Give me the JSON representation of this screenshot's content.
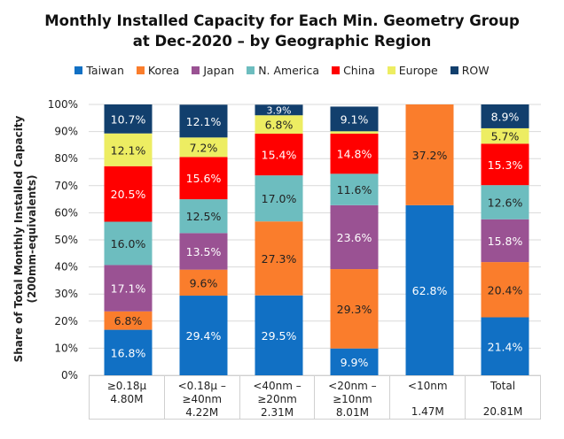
{
  "chart_data": {
    "type": "bar",
    "stacked": true,
    "title": "Monthly Installed Capacity for Each Min. Geometry Group at Dec-2020 – by Geographic Region",
    "title_lines": [
      "Monthly Installed Capacity for Each Min. Geometry Group",
      "at Dec-2020 – by Geographic Region"
    ],
    "xlabel": "",
    "ylabel": "Share of Total Monthly Installed Capacity",
    "ylabel_sub": "(200mm-equivalents)",
    "ylim": [
      0,
      100
    ],
    "yticks": [
      "0%",
      "10%",
      "20%",
      "30%",
      "40%",
      "50%",
      "60%",
      "70%",
      "80%",
      "90%",
      "100%"
    ],
    "grid": true,
    "legend_position": "top",
    "categories": [
      {
        "lines": [
          "≥0.18μ",
          "4.80M",
          ""
        ],
        "name": "≥0.18μ",
        "capacity": "4.80M"
      },
      {
        "lines": [
          "<0.18μ –",
          "≥40nm",
          "4.22M"
        ],
        "name": "<0.18μ – ≥40nm",
        "capacity": "4.22M"
      },
      {
        "lines": [
          "<40nm –",
          "≥20nm",
          "2.31M"
        ],
        "name": "<40nm – ≥20nm",
        "capacity": "2.31M"
      },
      {
        "lines": [
          "<20nm –",
          "≥10nm",
          "8.01M"
        ],
        "name": "<20nm – ≥10nm",
        "capacity": "8.01M"
      },
      {
        "lines": [
          "<10nm",
          "",
          "1.47M"
        ],
        "name": "<10nm",
        "capacity": "1.47M"
      },
      {
        "lines": [
          "Total",
          "",
          "20.81M"
        ],
        "name": "Total",
        "capacity": "20.81M"
      }
    ],
    "series": [
      {
        "name": "Taiwan",
        "color": "#1170C4",
        "label_color": "#ffffff",
        "values": [
          16.8,
          29.4,
          29.5,
          9.9,
          62.8,
          21.4
        ],
        "labels": [
          "16.8%",
          "29.4%",
          "29.5%",
          "9.9%",
          "62.8%",
          "21.4%"
        ]
      },
      {
        "name": "Korea",
        "color": "#FA7D2C",
        "label_color": "#222222",
        "values": [
          6.8,
          9.6,
          27.3,
          29.3,
          37.2,
          20.4
        ],
        "labels": [
          "6.8%",
          "9.6%",
          "27.3%",
          "29.3%",
          "37.2%",
          "20.4%"
        ]
      },
      {
        "name": "Japan",
        "color": "#9A5293",
        "label_color": "#ffffff",
        "values": [
          17.1,
          13.5,
          0,
          23.6,
          0,
          15.8
        ],
        "labels": [
          "17.1%",
          "13.5%",
          "",
          "23.6%",
          "",
          "15.8%"
        ]
      },
      {
        "name": "N. America",
        "color": "#6DBDBF",
        "label_color": "#222222",
        "values": [
          16.0,
          12.5,
          17.0,
          11.6,
          0,
          12.6
        ],
        "labels": [
          "16.0%",
          "12.5%",
          "17.0%",
          "11.6%",
          "",
          "12.6%"
        ]
      },
      {
        "name": "China",
        "color": "#FF0000",
        "label_color": "#ffffff",
        "values": [
          20.5,
          15.6,
          15.4,
          14.8,
          0,
          15.3
        ],
        "labels": [
          "20.5%",
          "15.6%",
          "15.4%",
          "14.8%",
          "",
          "15.3%"
        ]
      },
      {
        "name": "Europe",
        "color": "#EDED62",
        "label_color": "#222222",
        "values": [
          12.1,
          7.2,
          6.8,
          0.9,
          0,
          5.7
        ],
        "labels": [
          "12.1%",
          "7.2%",
          "6.8%",
          "",
          "",
          "5.7%"
        ]
      },
      {
        "name": "ROW",
        "color": "#123F6D",
        "label_color": "#ffffff",
        "values": [
          10.7,
          12.1,
          3.9,
          9.1,
          0,
          8.9
        ],
        "labels": [
          "10.7%",
          "12.1%",
          "3.9%",
          "9.1%",
          "",
          "8.9%"
        ]
      }
    ]
  }
}
